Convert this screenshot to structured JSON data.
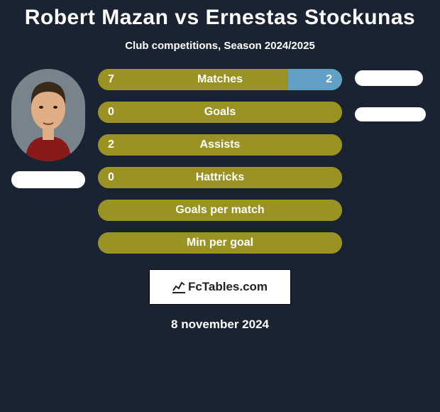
{
  "title": "Robert Mazan vs Ernestas Stockunas",
  "subtitle": "Club competitions, Season 2024/2025",
  "date": "8 november 2024",
  "logo": "FcTables.com",
  "colors": {
    "background": "#1a2332",
    "bar_left": "#9a9222",
    "bar_right": "#63a0c8",
    "pill": "#ffffff",
    "text": "#ffffff"
  },
  "bars": [
    {
      "label": "Matches",
      "left_val": "7",
      "right_val": "2",
      "left_pct": 78,
      "right_pct": 22,
      "show_right": true
    },
    {
      "label": "Goals",
      "left_val": "0",
      "right_val": "",
      "left_pct": 100,
      "right_pct": 0,
      "show_right": false
    },
    {
      "label": "Assists",
      "left_val": "2",
      "right_val": "",
      "left_pct": 100,
      "right_pct": 0,
      "show_right": false
    },
    {
      "label": "Hattricks",
      "left_val": "0",
      "right_val": "",
      "left_pct": 100,
      "right_pct": 0,
      "show_right": false
    },
    {
      "label": "Goals per match",
      "left_val": "",
      "right_val": "",
      "left_pct": 100,
      "right_pct": 0,
      "show_right": false
    },
    {
      "label": "Min per goal",
      "left_val": "",
      "right_val": "",
      "left_pct": 100,
      "right_pct": 0,
      "show_right": false
    }
  ],
  "avatar": {
    "face_fill": "#dfae86",
    "hair_fill": "#3a2a1c",
    "shirt_fill": "#8a1a1a",
    "bg_fill": "#79838b"
  }
}
